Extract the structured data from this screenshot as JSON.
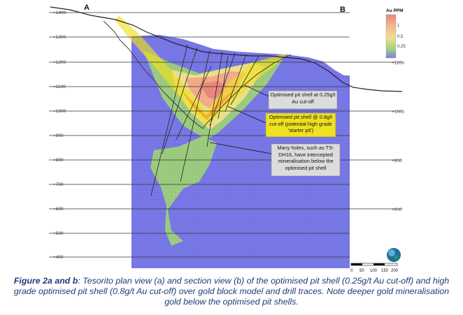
{
  "section": {
    "label_a": "A",
    "label_b": "B"
  },
  "elevations_left": [
    "+1400",
    "+1300",
    "+1200",
    "+1100",
    "+1000",
    "+900",
    "+800",
    "+700",
    "+600",
    "+500",
    "+400"
  ],
  "elevations_right": [
    "+1200",
    "+1000",
    "+800",
    "+600"
  ],
  "legend": {
    "title": "Au PPM",
    "ticks": [
      "1",
      "0.5",
      "0.25"
    ],
    "colors": [
      "#e8857a",
      "#f2c08f",
      "#eee08a",
      "#9fd07c",
      "#7e7ee8"
    ]
  },
  "scale_bar": {
    "ticks": [
      "0",
      "50",
      "100",
      "150",
      "200"
    ]
  },
  "callouts": {
    "pit_shell_low": "Optimised pit shell at 0.25g/t Au cut-off",
    "pit_shell_high": "Optimsied pit shell @ 0.8g/t cut-off (potential high grade 'starter pit')",
    "deep_holes": "Many holes, such as TS-DH16, have intercepted mineralisation below the optimised pit shell"
  },
  "caption": {
    "prefix": "Figure 2a and b",
    "text": ": Tesorito plan view (a) and section view (b) of the optimised pit shell (0.25g/t Au cut-off) and high grade optimised pit shell (0.8g/t Au cut-off) over gold block model and drill traces. Note deeper gold mineralisation gold below the optimised pit shells."
  },
  "colors": {
    "block_model": "#7878e6",
    "pit_shell_yellow": "#f0e020",
    "grid_line": "#333333",
    "caption_text": "#1f3a7a"
  }
}
